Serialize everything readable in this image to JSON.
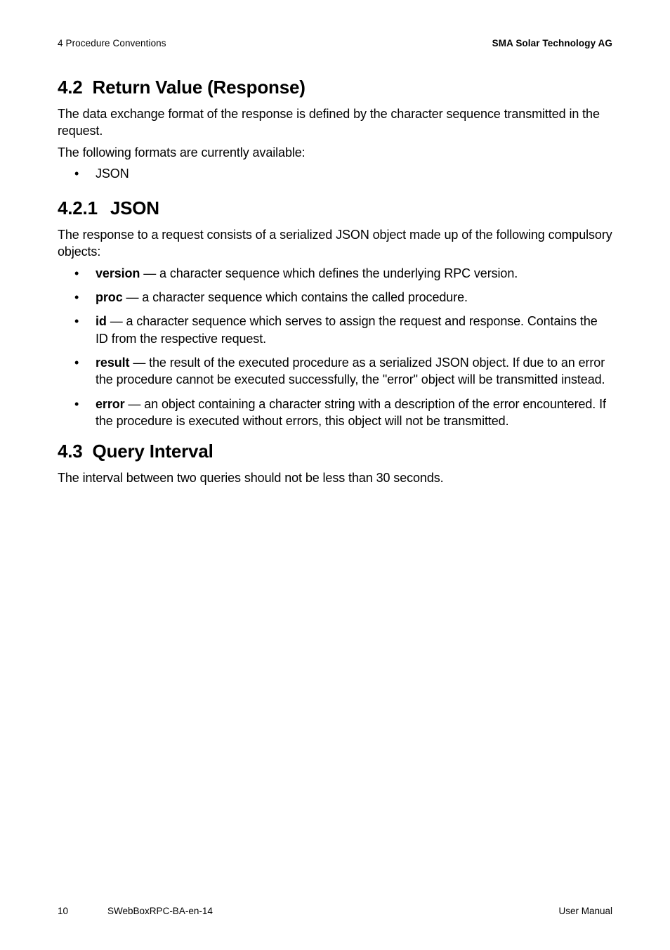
{
  "header": {
    "left": "4 Procedure Conventions",
    "right": "SMA Solar Technology AG"
  },
  "s42": {
    "num": "4.2",
    "title": "Return Value (Response)",
    "p1": "The data exchange format of the response is defined by the character sequence transmitted in the request.",
    "p2": "The following formats are currently available:",
    "bullet1": "JSON"
  },
  "s421": {
    "num": "4.2.1",
    "title": "JSON",
    "p1": "The response to a request consists of a serialized JSON object made up of the following compulsory objects:",
    "items": {
      "version_term": "version",
      "version_desc": " — a character sequence which defines the underlying RPC version.",
      "proc_term": "proc",
      "proc_desc": " — a character sequence which contains the called procedure.",
      "id_term": "id",
      "id_desc": " — a character sequence which serves to assign the request and response. Contains the ID from the respective request.",
      "result_term": "result",
      "result_desc": " — the result of the executed procedure as a serialized JSON object. If due to an error the procedure cannot be executed successfully, the \"error\" object will be transmitted instead.",
      "error_term": "error",
      "error_desc": " — an object containing a character string with a description of the error encountered. If the procedure is executed without errors, this object will not be transmitted."
    }
  },
  "s43": {
    "num": "4.3",
    "title": "Query Interval",
    "p1": "The interval between two queries should not be less than 30 seconds."
  },
  "footer": {
    "page": "10",
    "docid": "SWebBoxRPC-BA-en-14",
    "right": "User Manual"
  }
}
